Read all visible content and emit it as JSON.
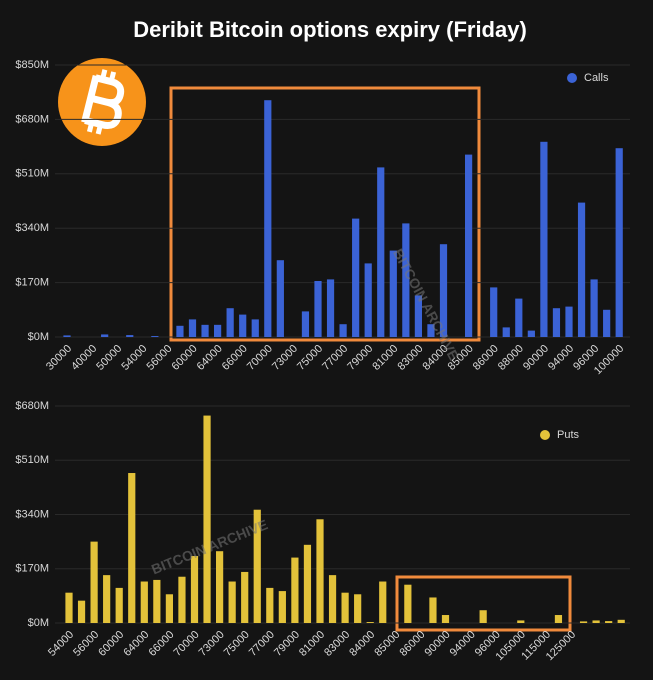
{
  "title": "Deribit Bitcoin options expiry (Friday)",
  "watermark": "BITCOIN ARCHIVE",
  "chart_data": [
    {
      "type": "bar",
      "categories": [
        "30000",
        null,
        "40000",
        null,
        "50000",
        null,
        "54000",
        null,
        "56000",
        null,
        "60000",
        null,
        "64000",
        null,
        "66000",
        null,
        "70000",
        null,
        "73000",
        null,
        "75000",
        null,
        "77000",
        null,
        "79000",
        null,
        "81000",
        null,
        "83000",
        null,
        "84000",
        null,
        "85000",
        null,
        "86000",
        null,
        "88000",
        null,
        "90000",
        null,
        "94000",
        null,
        "96000",
        null,
        "100000"
      ],
      "series": [
        {
          "name": "Calls",
          "color": "#3b63d6",
          "values": [
            5,
            0,
            0,
            8,
            0,
            6,
            0,
            3,
            0,
            35,
            55,
            38,
            38,
            90,
            70,
            55,
            740,
            240,
            0,
            80,
            175,
            180,
            40,
            370,
            230,
            530,
            270,
            355,
            130,
            40,
            290,
            0,
            570,
            0,
            155,
            30,
            120,
            20,
            610,
            90,
            95,
            420,
            180,
            85,
            590
          ]
        }
      ],
      "ylim": [
        0,
        850
      ],
      "yticks": [
        {
          "value": 0,
          "label": "$0M"
        },
        {
          "value": 170,
          "label": "$170M"
        },
        {
          "value": 340,
          "label": "$340M"
        },
        {
          "value": 510,
          "label": "$510M"
        },
        {
          "value": 680,
          "label": "$680M"
        },
        {
          "value": 850,
          "label": "$850M"
        }
      ],
      "grid": true,
      "legend": "top-right"
    },
    {
      "type": "bar",
      "categories": [
        "54000",
        null,
        "56000",
        null,
        "60000",
        null,
        "64000",
        null,
        "66000",
        null,
        "70000",
        null,
        "73000",
        null,
        "75000",
        null,
        "77000",
        null,
        "79000",
        null,
        "81000",
        null,
        "83000",
        null,
        "84000",
        null,
        "85000",
        null,
        "86000",
        null,
        "90000",
        null,
        "94000",
        null,
        "96000",
        null,
        "105000",
        null,
        "115000",
        null,
        "125000",
        null,
        null,
        null,
        null
      ],
      "series": [
        {
          "name": "Puts",
          "color": "#e3c23a",
          "values": [
            95,
            70,
            255,
            150,
            110,
            470,
            130,
            135,
            90,
            145,
            210,
            650,
            225,
            130,
            160,
            355,
            110,
            100,
            205,
            245,
            325,
            150,
            95,
            90,
            3,
            130,
            0,
            120,
            0,
            80,
            25,
            0,
            0,
            40,
            0,
            0,
            8,
            0,
            0,
            25,
            0,
            5,
            8,
            6,
            10
          ]
        }
      ],
      "ylim": [
        0,
        680
      ],
      "yticks": [
        {
          "value": 0,
          "label": "$0M"
        },
        {
          "value": 170,
          "label": "$170M"
        },
        {
          "value": 340,
          "label": "$340M"
        },
        {
          "value": 510,
          "label": "$510M"
        },
        {
          "value": 680,
          "label": "$680M"
        }
      ],
      "grid": true,
      "legend": "top-right"
    }
  ]
}
